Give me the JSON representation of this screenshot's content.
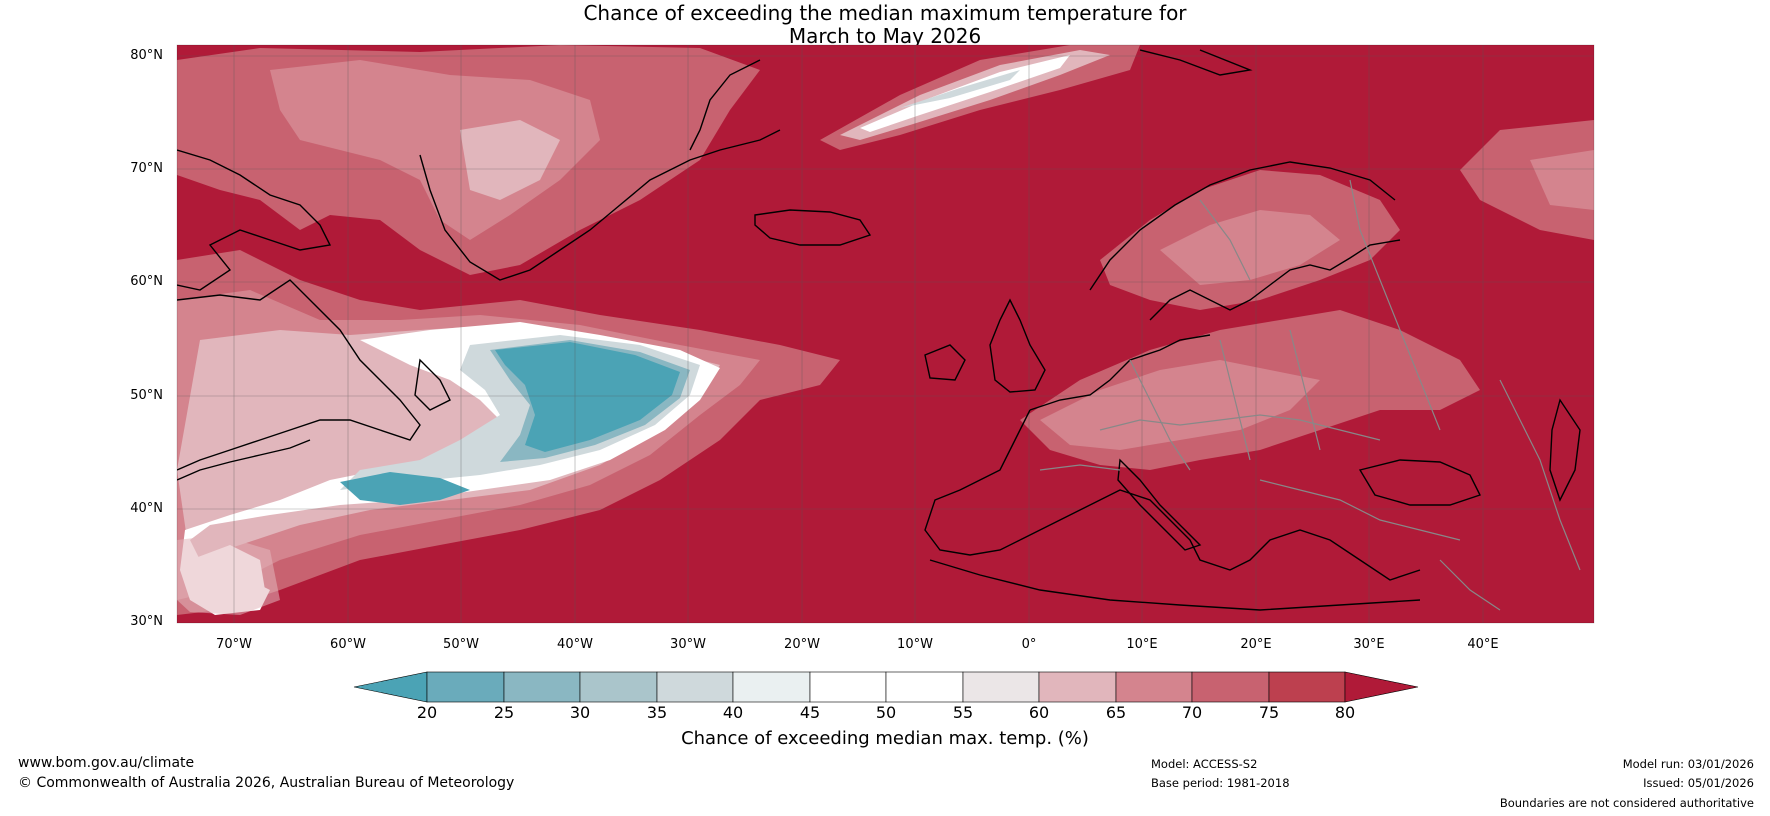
{
  "title": {
    "line1": "Chance of exceeding the median maximum temperature for",
    "line2": "March to May 2026"
  },
  "map": {
    "lat_labels": [
      "80°N",
      "70°N",
      "60°N",
      "50°N",
      "40°N",
      "30°N"
    ],
    "lon_labels": [
      "70°W",
      "60°W",
      "50°W",
      "40°W",
      "30°W",
      "20°W",
      "10°W",
      "0°",
      "10°E",
      "20°E",
      "30°E",
      "40°E"
    ],
    "background_color": "#b01a38"
  },
  "colorbar": {
    "label": "Chance of exceeding median max. temp. (%)",
    "ticks": [
      "20",
      "25",
      "30",
      "35",
      "40",
      "45",
      "50",
      "55",
      "60",
      "65",
      "70",
      "75",
      "80"
    ],
    "colors": {
      "below_20": "#4ba3b5",
      "c20_25": "#6aabbb",
      "c25_30": "#8ab7c2",
      "c30_35": "#aac5cb",
      "c35_40": "#cfd9dc",
      "c40_45": "#eaf0f1",
      "c45_50": "#ffffff",
      "c50_55": "#ffffff",
      "c55_60": "#ebe6e7",
      "c60_65": "#e1b6bc",
      "c65_70": "#d4848e",
      "c70_75": "#c86270",
      "c75_80": "#bd404f",
      "above_80": "#b01a38"
    }
  },
  "footer": {
    "url": "www.bom.gov.au/climate",
    "copyright": "© Commonwealth of Australia 2026, Australian Bureau of Meteorology",
    "model": "Model: ACCESS-S2",
    "base_period": "Base period: 1981-2018",
    "model_run": "Model run: 03/01/2026",
    "issued": "Issued: 05/01/2026",
    "disclaimer": "Boundaries are not considered authoritative"
  }
}
